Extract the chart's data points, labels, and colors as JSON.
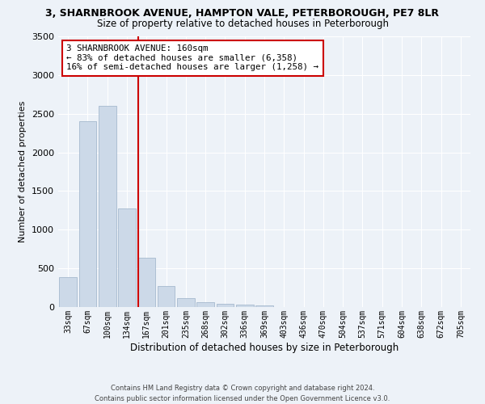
{
  "title_line1": "3, SHARNBROOK AVENUE, HAMPTON VALE, PETERBOROUGH, PE7 8LR",
  "title_line2": "Size of property relative to detached houses in Peterborough",
  "xlabel": "Distribution of detached houses by size in Peterborough",
  "ylabel": "Number of detached properties",
  "categories": [
    "33sqm",
    "67sqm",
    "100sqm",
    "134sqm",
    "167sqm",
    "201sqm",
    "235sqm",
    "268sqm",
    "302sqm",
    "336sqm",
    "369sqm",
    "403sqm",
    "436sqm",
    "470sqm",
    "504sqm",
    "537sqm",
    "571sqm",
    "604sqm",
    "638sqm",
    "672sqm",
    "705sqm"
  ],
  "values": [
    390,
    2400,
    2600,
    1270,
    640,
    270,
    115,
    60,
    45,
    30,
    20,
    0,
    0,
    0,
    0,
    0,
    0,
    0,
    0,
    0,
    0
  ],
  "bar_color": "#ccd9e8",
  "bar_edgecolor": "#9ab0c8",
  "annotation_line1": "3 SHARNBROOK AVENUE: 160sqm",
  "annotation_line2": "← 83% of detached houses are smaller (6,358)",
  "annotation_line3": "16% of semi-detached houses are larger (1,258) →",
  "vline_color": "#cc0000",
  "vline_x": 3.58,
  "ylim": [
    0,
    3500
  ],
  "yticks": [
    0,
    500,
    1000,
    1500,
    2000,
    2500,
    3000,
    3500
  ],
  "background_color": "#edf2f8",
  "grid_color": "#ffffff",
  "footer_line1": "Contains HM Land Registry data © Crown copyright and database right 2024.",
  "footer_line2": "Contains public sector information licensed under the Open Government Licence v3.0."
}
